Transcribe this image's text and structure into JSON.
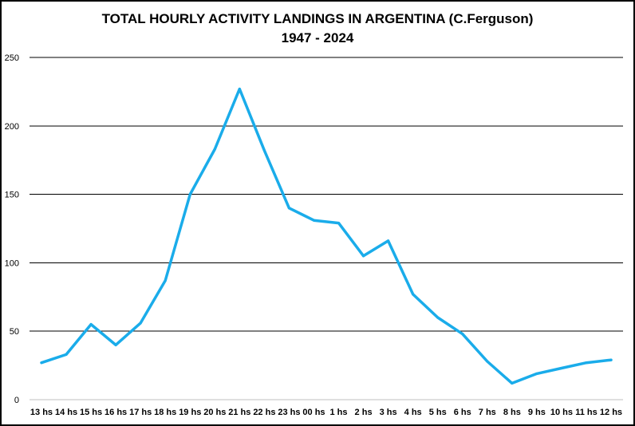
{
  "chart_data": {
    "type": "line",
    "title": "TOTAL HOURLY ACTIVITY LANDINGS IN ARGENTINA (C.Ferguson)",
    "subtitle": "1947 - 2024",
    "xlabel": "",
    "ylabel": "",
    "ylim": [
      0,
      250
    ],
    "yticks": [
      "0",
      "50",
      "100",
      "150",
      "200",
      "250"
    ],
    "grid": true,
    "legend": "none",
    "line_color": "#1AACEA",
    "categories": [
      "13 hs",
      "14 hs",
      "15 hs",
      "16 hs",
      "17 hs",
      "18 hs",
      "19 hs",
      "20 hs",
      "21 hs",
      "22 hs",
      "23 hs",
      "00 hs",
      "1 hs",
      "2 hs",
      "3 hs",
      "4 hs",
      "5 hs",
      "6 hs",
      "7 hs",
      "8 hs",
      "9 hs",
      "10 hs",
      "11 hs",
      "12 hs"
    ],
    "series": [
      {
        "values": [
          27,
          33,
          55,
          40,
          56,
          87,
          150,
          183,
          227,
          182,
          140,
          131,
          129,
          105,
          116,
          77,
          60,
          48,
          28,
          12,
          19,
          23,
          27,
          29
        ]
      }
    ]
  }
}
